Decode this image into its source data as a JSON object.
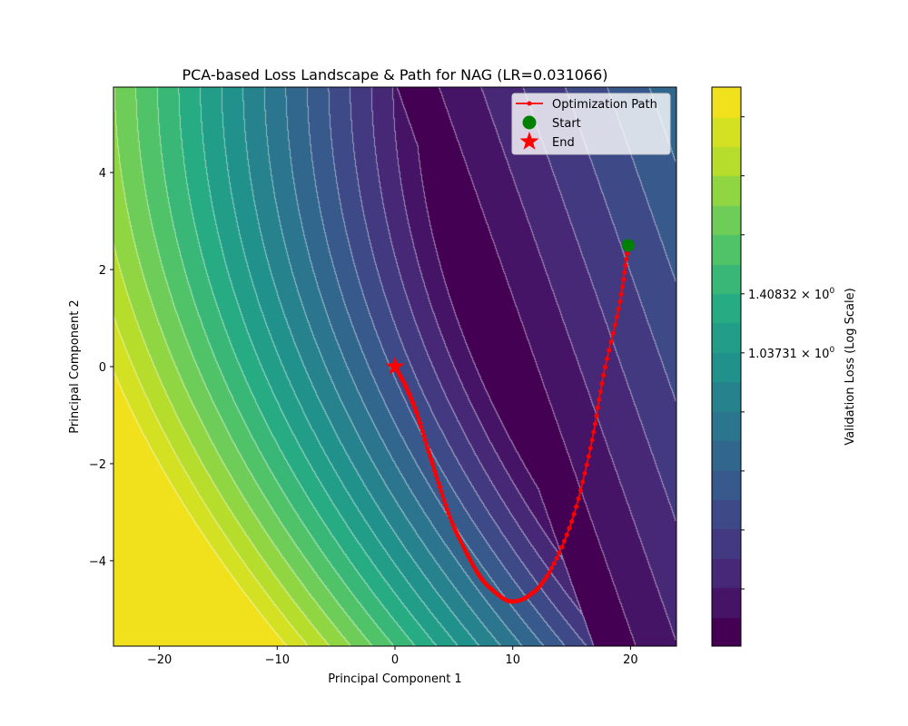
{
  "chart_data": {
    "type": "contour",
    "title": "PCA-based Loss Landscape & Path for NAG (LR=0.031066)",
    "xlabel": "Principal Component 1",
    "ylabel": "Principal Component 2",
    "xlim": [
      -23.9,
      23.9
    ],
    "ylim": [
      -5.76,
      5.76
    ],
    "xticks": [
      -20,
      -10,
      0,
      10,
      20
    ],
    "yticks": [
      -4,
      -2,
      0,
      2,
      4
    ],
    "xtick_labels": [
      "−20",
      "−10",
      "0",
      "10",
      "20"
    ],
    "ytick_labels": [
      "−4",
      "−2",
      "0",
      "2",
      "4"
    ],
    "contour_levels": 19,
    "colormap": "viridis",
    "colorbar": {
      "label": "Validation Loss (Log Scale)",
      "scale": "log",
      "range": [
        0.227,
        4.11
      ],
      "labeled_ticks": [
        {
          "value": 1.40832,
          "mantissa": "1.40832",
          "base": "× 10",
          "exp": "0"
        },
        {
          "value": 1.03731,
          "mantissa": "1.03731",
          "base": "× 10",
          "exp": "0"
        }
      ],
      "minor_tick_ratio": 1.3577
    },
    "path": {
      "name": "Optimization Path",
      "color": "#ff0000",
      "points": [
        [
          19.8,
          2.5
        ],
        [
          19.1,
          1.34
        ],
        [
          17.7,
          -0.18
        ],
        [
          16.6,
          -1.68
        ],
        [
          15.0,
          -3.19
        ],
        [
          13.1,
          -4.24
        ],
        [
          11.5,
          -4.7
        ],
        [
          9.86,
          -4.84
        ],
        [
          8.5,
          -4.65
        ],
        [
          7.2,
          -4.32
        ],
        [
          6.0,
          -3.8
        ],
        [
          4.8,
          -3.19
        ],
        [
          3.7,
          -2.4
        ],
        [
          2.77,
          -1.68
        ],
        [
          1.8,
          -0.93
        ],
        [
          0.9,
          -0.4
        ],
        [
          0.0,
          0.0
        ]
      ]
    },
    "start": {
      "name": "Start",
      "x": 19.8,
      "y": 2.5,
      "color": "#008000"
    },
    "end": {
      "name": "End",
      "x": 0.0,
      "y": 0.0,
      "color": "#ff0000"
    },
    "legend": {
      "position": "top-right",
      "entries": [
        "Optimization Path",
        "Start",
        "End"
      ]
    }
  }
}
